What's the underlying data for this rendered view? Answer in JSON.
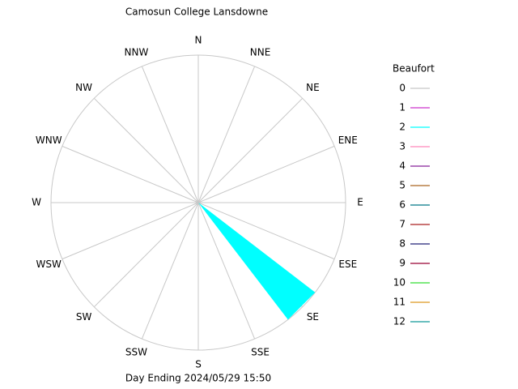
{
  "chart_data": {
    "type": "windrose",
    "title": "Camosun College Lansdowne",
    "footer": "Day Ending 2024/05/29 15:50",
    "legend_title": "Beaufort",
    "directions": [
      "N",
      "NNE",
      "NE",
      "ENE",
      "E",
      "ESE",
      "SE",
      "SSE",
      "S",
      "SSW",
      "SW",
      "WSW",
      "W",
      "WNW",
      "NW",
      "NNW"
    ],
    "rlim": [
      0,
      100
    ],
    "series": [
      {
        "name": "0",
        "color": "#c8c8c8",
        "values": [
          0,
          0,
          0,
          0,
          0,
          0,
          0,
          0,
          0,
          0,
          0,
          0,
          0,
          0,
          0,
          0
        ]
      },
      {
        "name": "1",
        "color": "#cc33cc",
        "values": [
          0,
          0,
          0,
          0,
          0,
          0,
          0,
          0,
          0,
          0,
          0,
          0,
          0,
          0,
          0,
          0
        ]
      },
      {
        "name": "2",
        "color": "#00ffff",
        "values": [
          0,
          0,
          0,
          0,
          0,
          0,
          100,
          0,
          0,
          0,
          0,
          0,
          0,
          0,
          0,
          0
        ]
      },
      {
        "name": "3",
        "color": "#ff88bb",
        "values": [
          0,
          0,
          0,
          0,
          0,
          0,
          0,
          0,
          0,
          0,
          0,
          0,
          0,
          0,
          0,
          0
        ]
      },
      {
        "name": "4",
        "color": "#882299",
        "values": [
          0,
          0,
          0,
          0,
          0,
          0,
          0,
          0,
          0,
          0,
          0,
          0,
          0,
          0,
          0,
          0
        ]
      },
      {
        "name": "5",
        "color": "#aa6622",
        "values": [
          0,
          0,
          0,
          0,
          0,
          0,
          0,
          0,
          0,
          0,
          0,
          0,
          0,
          0,
          0,
          0
        ]
      },
      {
        "name": "6",
        "color": "#007788",
        "values": [
          0,
          0,
          0,
          0,
          0,
          0,
          0,
          0,
          0,
          0,
          0,
          0,
          0,
          0,
          0,
          0
        ]
      },
      {
        "name": "7",
        "color": "#aa2222",
        "values": [
          0,
          0,
          0,
          0,
          0,
          0,
          0,
          0,
          0,
          0,
          0,
          0,
          0,
          0,
          0,
          0
        ]
      },
      {
        "name": "8",
        "color": "#222277",
        "values": [
          0,
          0,
          0,
          0,
          0,
          0,
          0,
          0,
          0,
          0,
          0,
          0,
          0,
          0,
          0,
          0
        ]
      },
      {
        "name": "9",
        "color": "#990033",
        "values": [
          0,
          0,
          0,
          0,
          0,
          0,
          0,
          0,
          0,
          0,
          0,
          0,
          0,
          0,
          0,
          0
        ]
      },
      {
        "name": "10",
        "color": "#33dd33",
        "values": [
          0,
          0,
          0,
          0,
          0,
          0,
          0,
          0,
          0,
          0,
          0,
          0,
          0,
          0,
          0,
          0
        ]
      },
      {
        "name": "11",
        "color": "#dd9922",
        "values": [
          0,
          0,
          0,
          0,
          0,
          0,
          0,
          0,
          0,
          0,
          0,
          0,
          0,
          0,
          0,
          0
        ]
      },
      {
        "name": "12",
        "color": "#119999",
        "values": [
          0,
          0,
          0,
          0,
          0,
          0,
          0,
          0,
          0,
          0,
          0,
          0,
          0,
          0,
          0,
          0
        ]
      }
    ]
  }
}
